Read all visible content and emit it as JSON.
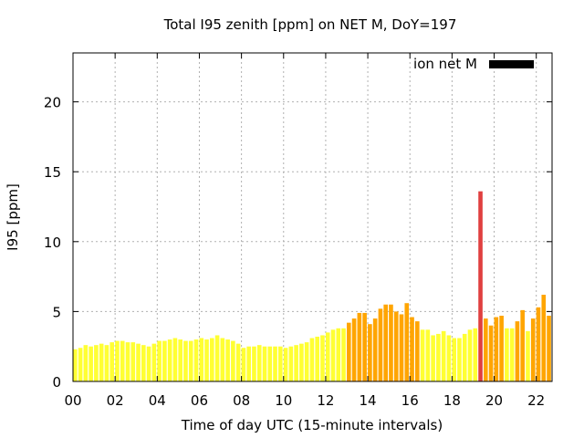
{
  "chart_data": {
    "type": "bar",
    "title": "Total I95 zenith [ppm] on NET M, DoY=197",
    "xlabel": "Time of day UTC (15-minute intervals)",
    "ylabel": "I95 [ppm]",
    "xlim": [
      0,
      22.75
    ],
    "ylim": [
      0,
      23.5
    ],
    "x_tick_labels": [
      "00",
      "02",
      "04",
      "06",
      "08",
      "10",
      "12",
      "14",
      "16",
      "18",
      "20",
      "22"
    ],
    "y_tick_labels": [
      "0",
      "5",
      "10",
      "15",
      "20"
    ],
    "grid": true,
    "legend": {
      "position": "top-right",
      "entries": [
        {
          "label": "ion net M",
          "color": "#000000"
        }
      ]
    },
    "bar_width_hours": 0.2,
    "level_colors": {
      "low": "#ffff33",
      "moderate": "#ffa500",
      "high": "#e04040"
    },
    "series": [
      {
        "values": [
          2.3,
          2.4,
          2.6,
          2.5,
          2.6,
          2.7,
          2.6,
          2.8,
          2.9,
          2.9,
          2.8,
          2.8,
          2.7,
          2.6,
          2.5,
          2.7,
          2.9,
          2.9,
          3.0,
          3.1,
          3.0,
          2.9,
          2.9,
          3.0,
          3.1,
          3.0,
          3.1,
          3.3,
          3.1,
          3.0,
          2.9,
          2.7,
          2.4,
          2.5,
          2.5,
          2.6,
          2.5,
          2.5,
          2.5,
          2.5,
          2.4,
          2.5,
          2.6,
          2.7,
          2.8,
          3.1,
          3.2,
          3.3,
          3.5,
          3.7,
          3.8,
          3.8,
          4.2,
          4.5,
          4.9,
          4.9,
          4.1,
          4.5,
          5.2,
          5.5,
          5.5,
          5.0,
          4.8,
          5.6,
          4.6,
          4.3,
          3.7,
          3.7,
          3.3,
          3.4,
          3.6,
          3.3,
          3.1,
          3.1,
          3.4,
          3.7,
          3.8,
          13.6,
          4.5,
          4.0,
          4.6,
          4.7,
          3.8,
          3.8,
          4.3,
          5.1,
          3.6,
          4.5,
          5.3,
          6.2,
          4.7
        ],
        "levels": [
          "low",
          "low",
          "low",
          "low",
          "low",
          "low",
          "low",
          "low",
          "low",
          "low",
          "low",
          "low",
          "low",
          "low",
          "low",
          "low",
          "low",
          "low",
          "low",
          "low",
          "low",
          "low",
          "low",
          "low",
          "low",
          "low",
          "low",
          "low",
          "low",
          "low",
          "low",
          "low",
          "low",
          "low",
          "low",
          "low",
          "low",
          "low",
          "low",
          "low",
          "low",
          "low",
          "low",
          "low",
          "low",
          "low",
          "low",
          "low",
          "low",
          "low",
          "low",
          "low",
          "moderate",
          "moderate",
          "moderate",
          "moderate",
          "moderate",
          "moderate",
          "moderate",
          "moderate",
          "moderate",
          "moderate",
          "moderate",
          "moderate",
          "moderate",
          "moderate",
          "low",
          "low",
          "low",
          "low",
          "low",
          "low",
          "low",
          "low",
          "low",
          "low",
          "low",
          "high",
          "moderate",
          "moderate",
          "moderate",
          "moderate",
          "low",
          "low",
          "moderate",
          "moderate",
          "low",
          "moderate",
          "moderate",
          "moderate",
          "moderate"
        ]
      }
    ]
  }
}
